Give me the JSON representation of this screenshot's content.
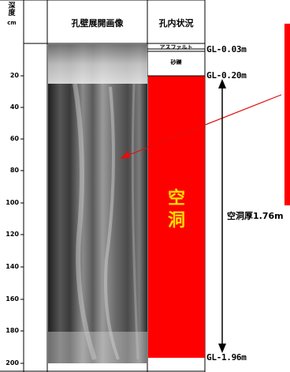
{
  "header": {
    "depth_col": [
      "深",
      "度"
    ],
    "depth_unit": "cm",
    "image_col": "孔壁展開画像",
    "status_col": "孔内状況"
  },
  "depth_ticks": [
    "20",
    "40",
    "60",
    "80",
    "100",
    "120",
    "140",
    "160",
    "180",
    "200"
  ],
  "strata": [
    {
      "name": "アスファルト",
      "color": "#ffffff"
    },
    {
      "name": "砂礫",
      "color": "#ffffff"
    },
    {
      "name": "空洞",
      "color": "#ff0000"
    }
  ],
  "gl_labels": [
    "GL-0.03m",
    "GL-0.20m",
    "GL-1.96m"
  ],
  "void_thickness_label": "空洞厚1.76m",
  "colors": {
    "void": "#ff0000",
    "void_text": "#ffe000",
    "arrow": "#e01010"
  }
}
